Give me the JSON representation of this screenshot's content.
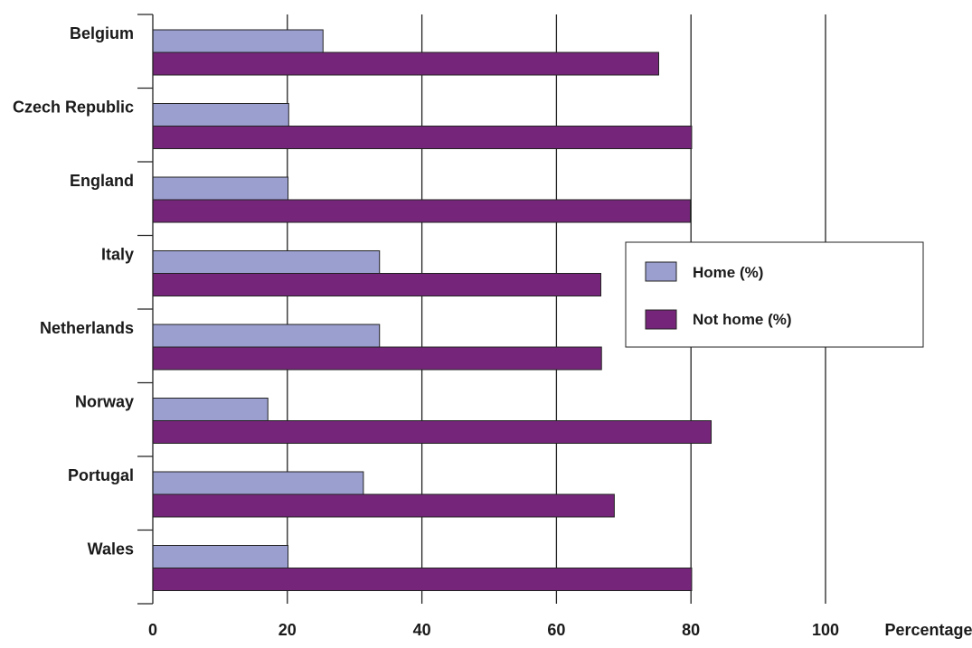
{
  "chart_data": {
    "type": "bar",
    "orientation": "horizontal",
    "categories": [
      "Belgium",
      "Czech Republic",
      "England",
      "Italy",
      "Netherlands",
      "Norway",
      "Portugal",
      "Wales"
    ],
    "series": [
      {
        "name": "Home (%)",
        "color": "#9b9fd0",
        "values": [
          25.3,
          20.2,
          20.1,
          33.7,
          33.7,
          17.1,
          31.3,
          20.1
        ]
      },
      {
        "name": "Not home (%)",
        "color": "#76267a",
        "values": [
          75.2,
          80.1,
          79.9,
          66.6,
          66.7,
          83.0,
          68.6,
          80.1
        ]
      }
    ],
    "xlabel": "Percentage",
    "ylabel": "",
    "xlim": [
      0,
      100
    ],
    "x_ticks": [
      "0",
      "20",
      "40",
      "60",
      "80",
      "100"
    ],
    "grid": "vertical",
    "legend_position": "right"
  }
}
